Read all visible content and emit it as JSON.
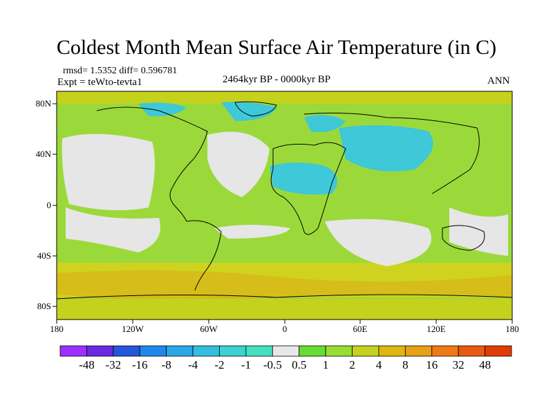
{
  "figure": {
    "title": "Coldest Month Mean Surface Air Temperature (in C)",
    "stats": "rmsd= 1.5352 diff= 0.596781",
    "experiment": "Expt = teWto-tevta1",
    "period": "2464kyr BP - 0000kyr BP",
    "season": "ANN"
  },
  "axes": {
    "y_ticks": [
      "80N",
      "40N",
      "0",
      "40S",
      "80S"
    ],
    "x_ticks": [
      "180",
      "120W",
      "60W",
      "0",
      "60E",
      "120E",
      "180"
    ],
    "lon_range": [
      -180,
      180
    ],
    "lat_range": [
      -90,
      90
    ]
  },
  "colorbar": {
    "labels": [
      "-48",
      "-32",
      "-16",
      "-8",
      "-4",
      "-2",
      "-1",
      "-0.5",
      "0.5",
      "1",
      "2",
      "4",
      "8",
      "16",
      "32",
      "48"
    ],
    "colors": [
      "#9b30ff",
      "#6a2ae0",
      "#2456d8",
      "#1f88e8",
      "#2aa8e6",
      "#33bde0",
      "#3fd0d0",
      "#45e0c0",
      "#e8e8e8",
      "#66dd33",
      "#99dd33",
      "#c4d21e",
      "#dcb810",
      "#e8a018",
      "#ee7a16",
      "#e85a10",
      "#e03c08"
    ]
  },
  "colors": {
    "ocean_background": "#9bd93a",
    "neutral": "#e6e6e6",
    "cool": "#3ec8d8",
    "warm": "#cfd21e",
    "coastline": "#000000"
  }
}
